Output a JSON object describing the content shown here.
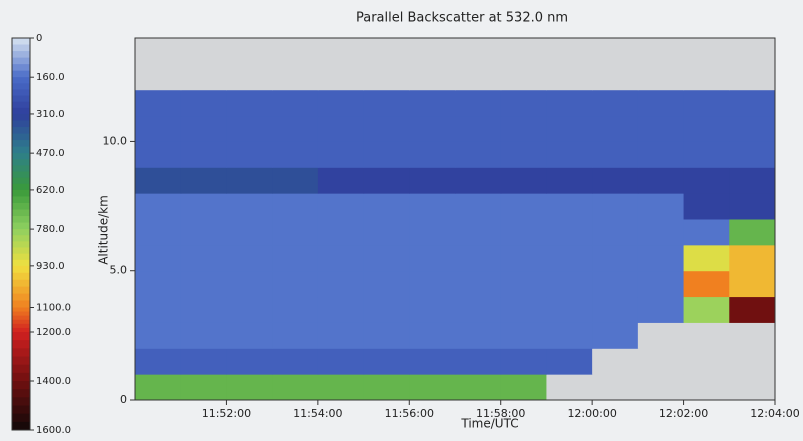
{
  "chart_data": {
    "type": "heatmap",
    "title": "Parallel Backscatter at 532.0 nm",
    "xlabel": "Time/UTC",
    "ylabel": "Altitude/km",
    "x": [
      "11:50:00",
      "11:51:00",
      "11:52:00",
      "11:53:00",
      "11:54:00",
      "11:55:00",
      "11:56:00",
      "11:57:00",
      "11:58:00",
      "11:59:00",
      "12:00:00",
      "12:01:00",
      "12:02:00",
      "12:03:00"
    ],
    "xlim": [
      "11:50:00",
      "12:04:00"
    ],
    "xticks": [
      "11:52:00",
      "11:54:00",
      "11:56:00",
      "11:58:00",
      "12:00:00",
      "12:02:00",
      "12:04:00"
    ],
    "y_bins": [
      0,
      1,
      2,
      3,
      4,
      5,
      6,
      7,
      8,
      9,
      10,
      11,
      12,
      13,
      14
    ],
    "ylim": [
      0,
      14
    ],
    "yticks": [
      0,
      {
        "value": 5,
        "label": "5.0"
      },
      {
        "value": 10,
        "label": "10.0"
      }
    ],
    "values": [
      [
        700,
        700,
        700,
        700,
        700,
        700,
        700,
        700,
        700,
        null,
        null,
        null,
        null,
        null
      ],
      [
        200,
        200,
        200,
        200,
        200,
        200,
        200,
        200,
        200,
        200,
        null,
        null,
        null,
        null
      ],
      [
        150,
        150,
        150,
        150,
        150,
        150,
        150,
        150,
        150,
        150,
        150,
        null,
        null,
        null
      ],
      [
        150,
        150,
        150,
        150,
        150,
        150,
        150,
        150,
        150,
        150,
        150,
        150,
        800,
        1400
      ],
      [
        150,
        150,
        150,
        150,
        150,
        150,
        150,
        150,
        150,
        150,
        150,
        150,
        1100,
        1000
      ],
      [
        150,
        150,
        150,
        150,
        150,
        150,
        150,
        150,
        150,
        150,
        150,
        150,
        900,
        1000
      ],
      [
        150,
        150,
        150,
        150,
        150,
        150,
        150,
        150,
        150,
        150,
        150,
        150,
        150,
        700
      ],
      [
        150,
        150,
        150,
        150,
        150,
        150,
        150,
        150,
        150,
        150,
        150,
        150,
        300,
        300
      ],
      [
        350,
        350,
        350,
        350,
        300,
        300,
        300,
        300,
        300,
        300,
        300,
        300,
        300,
        300
      ],
      [
        200,
        200,
        200,
        200,
        200,
        200,
        200,
        200,
        200,
        200,
        200,
        200,
        200,
        200
      ],
      [
        200,
        200,
        200,
        200,
        200,
        200,
        200,
        200,
        200,
        200,
        200,
        200,
        200,
        200
      ],
      [
        200,
        200,
        200,
        200,
        200,
        200,
        200,
        200,
        200,
        200,
        200,
        200,
        200,
        200
      ],
      [
        null,
        null,
        null,
        null,
        null,
        null,
        null,
        null,
        null,
        null,
        null,
        null,
        null,
        null
      ],
      [
        null,
        null,
        null,
        null,
        null,
        null,
        null,
        null,
        null,
        null,
        null,
        null,
        null,
        null
      ]
    ],
    "clim": [
      0,
      1600
    ],
    "cticks": [
      0,
      {
        "value": 160,
        "label": "160.0"
      },
      {
        "value": 310,
        "label": "310.0"
      },
      {
        "value": 470,
        "label": "470.0"
      },
      {
        "value": 620,
        "label": "620.0"
      },
      {
        "value": 780,
        "label": "780.0"
      },
      {
        "value": 930,
        "label": "930.0"
      },
      {
        "value": 1100,
        "label": "1100.0"
      },
      {
        "value": 1200,
        "label": "1200.0"
      },
      {
        "value": 1400,
        "label": "1400.0"
      },
      {
        "value": 1600,
        "label": "1600.0"
      }
    ],
    "colors": [
      "#d8e4f0",
      "#4a6cc8",
      "#2f3f9c",
      "#2e7f8a",
      "#3a9a3a",
      "#8fd060",
      "#f0e040",
      "#f08020",
      "#d02020",
      "#701010",
      "#100808"
    ],
    "no_data_color": "#d4d6d8"
  }
}
